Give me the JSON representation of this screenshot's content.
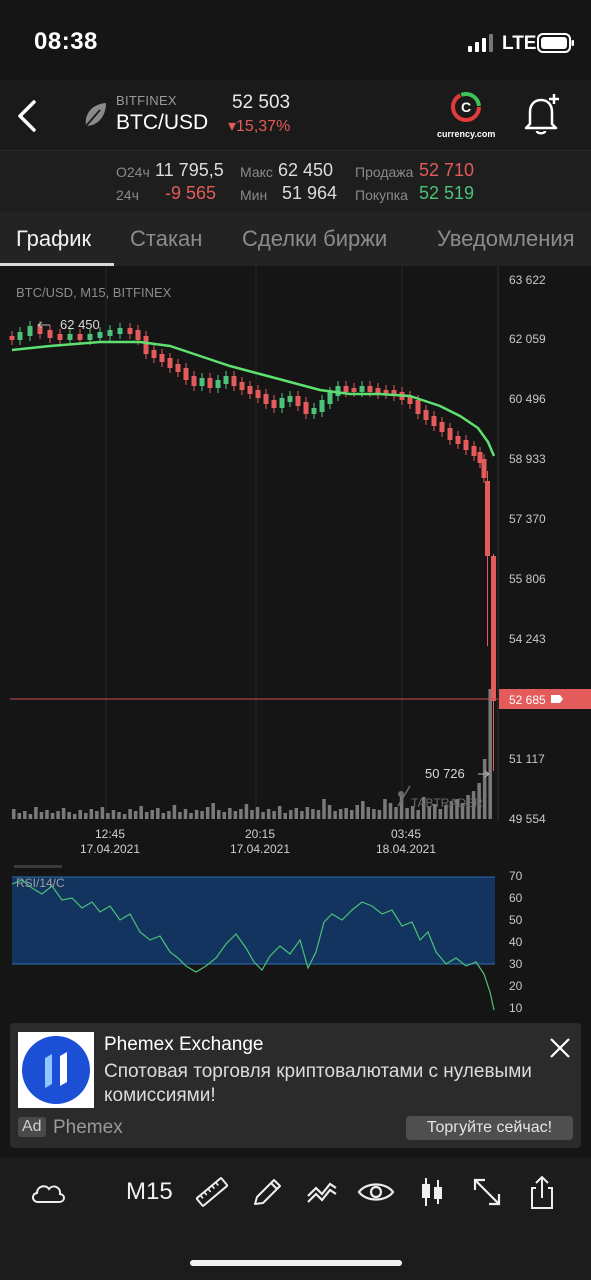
{
  "status": {
    "time": "08:38",
    "network": "LTE"
  },
  "header": {
    "exchange": "BITFINEX",
    "pair": "BTC/USD",
    "price": "52 503",
    "change": "▾15,37%",
    "logo_text": "currency.com"
  },
  "stats": {
    "o24_label": "O24ч",
    "o24_value": "11 795,5",
    "max_label": "Макс",
    "max_value": "62 450",
    "sell_label": "Продажа",
    "sell_value": "52 710",
    "d24_label": "24ч",
    "d24_value": "-9 565",
    "min_label": "Мин",
    "min_value": "51 964",
    "buy_label": "Покупка",
    "buy_value": "52 519"
  },
  "tabs": [
    "График",
    "Стакан",
    "Сделки биржи",
    "Уведомления"
  ],
  "chart": {
    "label": "BTC/USD, M15, BITFINEX",
    "y_ticks": [
      "63 622",
      "62 059",
      "60 496",
      "58 933",
      "57 370",
      "55 806",
      "54 243",
      "52 685",
      "51 117",
      "49 554"
    ],
    "current_price": "52 685",
    "high_marker": "62 450",
    "low_marker": "50 726",
    "watermark": "TABTRADER",
    "x_ticks": [
      {
        "time": "12:45",
        "date": "17.04.2021"
      },
      {
        "time": "20:15",
        "date": "17.04.2021"
      },
      {
        "time": "03:45",
        "date": "18.04.2021"
      }
    ],
    "colors": {
      "up": "#4cc27a",
      "down": "#e35b5b",
      "ma": "#5ee070"
    }
  },
  "rsi": {
    "label": "RSI/14/C",
    "y_ticks": [
      "70",
      "60",
      "50",
      "40",
      "30",
      "20",
      "10"
    ]
  },
  "ad": {
    "title": "Phemex Exchange",
    "text": "Спотовая торговля криптовалютами с нулевыми комиссиями!",
    "badge": "Ad",
    "brand": "Phemex",
    "cta": "Торгуйте сейчас!"
  },
  "toolbar": {
    "timeframe": "M15",
    "icons": [
      "cloud-icon",
      "ruler-icon",
      "pencil-icon",
      "indicators-icon",
      "eye-icon",
      "candles-icon",
      "expand-icon",
      "share-icon"
    ]
  }
}
